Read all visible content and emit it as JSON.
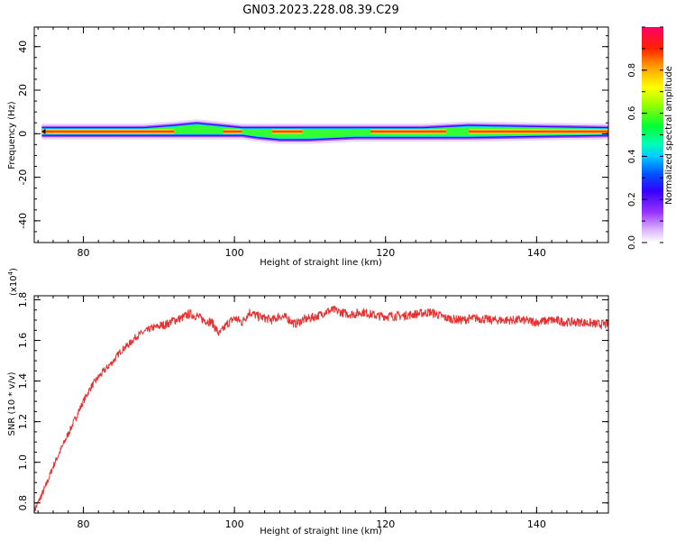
{
  "title": "GN03.2023.228.08.39.C29",
  "chart_data": [
    {
      "type": "heatmap",
      "xlabel": "Height of straight line (km)",
      "ylabel": "Frequency (Hz)",
      "xlim": [
        73.5,
        149.5
      ],
      "ylim": [
        -50,
        49
      ],
      "xticks": [
        80,
        100,
        120,
        140
      ],
      "yticks": [
        -40,
        -20,
        0,
        20,
        40
      ],
      "colorbar": {
        "label": "Normalized spectral amplitude",
        "range": [
          0.0,
          1.0
        ],
        "ticks": [
          0.0,
          0.2,
          0.4,
          0.6,
          0.8
        ],
        "tick_labels": [
          "0.0",
          "0.2",
          "0.4",
          "0.6",
          "0.8"
        ]
      },
      "band": {
        "x_start": 74.5,
        "x_end": 149.5,
        "center_frequency": 1.0,
        "profile": [
          {
            "x": 74.5,
            "lower": -1,
            "upper": 3
          },
          {
            "x": 88,
            "lower": -1,
            "upper": 3
          },
          {
            "x": 92,
            "lower": -1,
            "upper": 4
          },
          {
            "x": 95,
            "lower": -1,
            "upper": 5
          },
          {
            "x": 98,
            "lower": -1,
            "upper": 4
          },
          {
            "x": 101,
            "lower": -1,
            "upper": 3
          },
          {
            "x": 103,
            "lower": -2,
            "upper": 3
          },
          {
            "x": 106,
            "lower": -3,
            "upper": 3
          },
          {
            "x": 110,
            "lower": -3,
            "upper": 3
          },
          {
            "x": 116,
            "lower": -2,
            "upper": 3
          },
          {
            "x": 125,
            "lower": -2,
            "upper": 3
          },
          {
            "x": 131,
            "lower": -2,
            "upper": 4
          },
          {
            "x": 149.5,
            "lower": -1,
            "upper": 3
          }
        ]
      }
    },
    {
      "type": "line",
      "xlabel": "Height of straight line (km)",
      "ylabel": "SNR (10 * v/v)",
      "y_multiplier_label": "(x10",
      "y_multiplier_exponent": "4",
      "y_multiplier_close": ")",
      "xlim": [
        73.5,
        149.5
      ],
      "ylim": [
        0.75,
        1.82
      ],
      "xticks": [
        80,
        100,
        120,
        140
      ],
      "yticks": [
        0.8,
        1.0,
        1.2,
        1.4,
        1.6,
        1.8
      ],
      "ytick_labels": [
        "0.8",
        "1.0",
        "1.2",
        "1.4",
        "1.6",
        "1.8"
      ],
      "color": "#e83030",
      "series": [
        {
          "x": [
            73.5,
            74,
            75,
            76,
            77,
            78,
            79,
            80,
            81,
            82,
            83,
            84,
            85,
            86,
            87,
            88,
            89,
            90,
            91,
            92,
            93,
            94,
            95,
            96,
            97,
            98,
            99,
            100,
            101,
            102,
            103,
            104,
            105,
            106,
            107,
            108,
            109,
            110,
            111,
            112,
            113,
            114,
            115,
            116,
            117,
            118,
            119,
            120,
            122,
            124,
            126,
            128,
            130,
            132,
            134,
            136,
            138,
            140,
            142,
            144,
            146,
            148,
            149.5
          ],
          "y": [
            0.76,
            0.8,
            0.88,
            0.98,
            1.06,
            1.14,
            1.22,
            1.3,
            1.37,
            1.42,
            1.46,
            1.5,
            1.55,
            1.58,
            1.62,
            1.64,
            1.66,
            1.67,
            1.68,
            1.7,
            1.71,
            1.73,
            1.72,
            1.7,
            1.69,
            1.63,
            1.68,
            1.71,
            1.69,
            1.74,
            1.72,
            1.71,
            1.7,
            1.72,
            1.71,
            1.68,
            1.7,
            1.71,
            1.72,
            1.74,
            1.75,
            1.74,
            1.73,
            1.73,
            1.74,
            1.73,
            1.72,
            1.72,
            1.72,
            1.73,
            1.74,
            1.71,
            1.7,
            1.71,
            1.7,
            1.7,
            1.7,
            1.69,
            1.7,
            1.69,
            1.69,
            1.68,
            1.68
          ]
        }
      ]
    }
  ]
}
